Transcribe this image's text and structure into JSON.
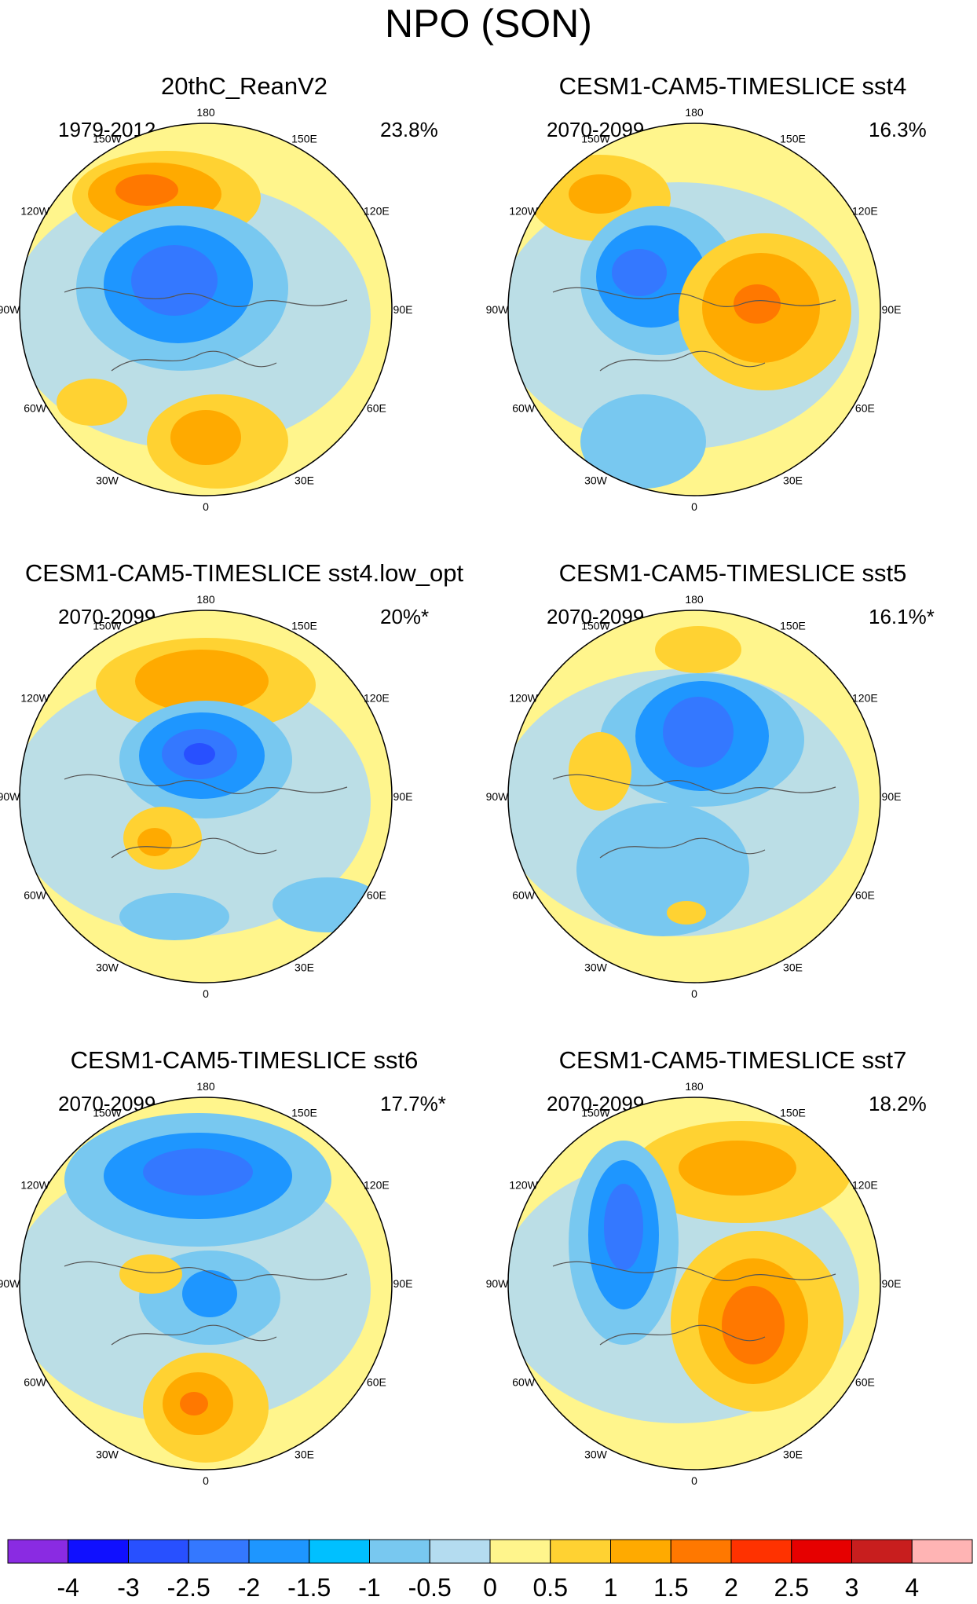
{
  "title": "NPO (SON)",
  "lon_labels": [
    "180",
    "150E",
    "120E",
    "90E",
    "60E",
    "30E",
    "0",
    "30W",
    "60W",
    "90W",
    "120W",
    "150W"
  ],
  "panels": [
    {
      "title": "20thC_ReanV2",
      "period": "1979-2012",
      "percent": "23.8%"
    },
    {
      "title": "CESM1-CAM5-TIMESLICE sst4",
      "period": "2070-2099",
      "percent": "16.3%"
    },
    {
      "title": "CESM1-CAM5-TIMESLICE sst4.low_opt",
      "period": "2070-2099",
      "percent": "20%*"
    },
    {
      "title": "CESM1-CAM5-TIMESLICE sst5",
      "period": "2070-2099",
      "percent": "16.1%*"
    },
    {
      "title": "CESM1-CAM5-TIMESLICE sst6",
      "period": "2070-2099",
      "percent": "17.7%*"
    },
    {
      "title": "CESM1-CAM5-TIMESLICE sst7",
      "period": "2070-2099",
      "percent": "18.2%"
    }
  ],
  "colorbar": {
    "labels": [
      "-4",
      "-3",
      "-2.5",
      "-2",
      "-1.5",
      "-1",
      "-0.5",
      "0",
      "0.5",
      "1",
      "1.5",
      "2",
      "2.5",
      "3",
      "4"
    ],
    "colors": [
      "#8a2be2",
      "#1010ff",
      "#2850ff",
      "#3478ff",
      "#1e96ff",
      "#00c0ff",
      "#78c8f0",
      "#b4dcf0",
      "#fff58c",
      "#ffd232",
      "#ffaa00",
      "#ff7800",
      "#ff3200",
      "#e60000",
      "#c81e1e",
      "#ffb4b4"
    ]
  },
  "anomaly_levels": {
    "pos1": "#ffd232",
    "pos2": "#ffaa00",
    "pos3": "#ff7800",
    "neg1": "#78c8f0",
    "neg2": "#1e96ff",
    "neg3": "#3478ff",
    "neg4": "#2850ff"
  }
}
